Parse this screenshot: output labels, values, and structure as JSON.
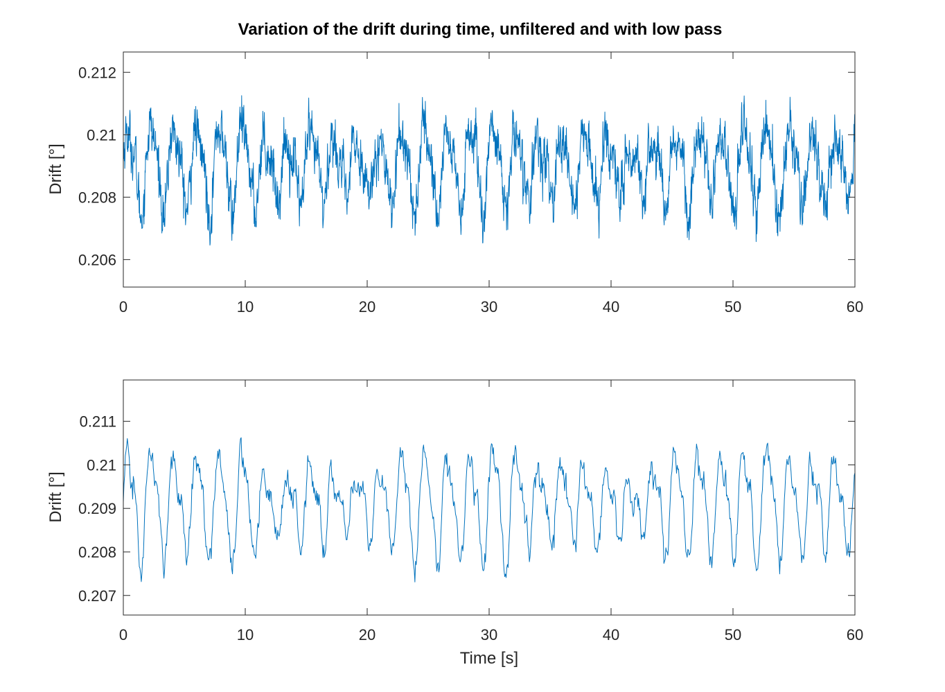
{
  "figure": {
    "title": "Variation of the drift during time, unfiltered and with low pass"
  },
  "chart_data": [
    {
      "type": "line",
      "panel": "top",
      "title": "Variation of the drift during time, unfiltered and with low pass",
      "xlabel": "",
      "ylabel": "Drift [°]",
      "xlim": [
        0,
        60
      ],
      "ylim": [
        0.20512,
        0.21265
      ],
      "xticks": [
        0,
        10,
        20,
        30,
        40,
        50,
        60
      ],
      "xtick_labels": [
        "0",
        "10",
        "20",
        "30",
        "40",
        "50",
        "60"
      ],
      "yticks": [
        0.206,
        0.208,
        0.21,
        0.212
      ],
      "ytick_labels": [
        "0.206",
        "0.208",
        "0.21",
        "0.212"
      ],
      "grid": false,
      "series": [
        {
          "color": "#0072BD",
          "signal": {
            "duration": 60,
            "samples": 3000,
            "mean": 0.209,
            "period": 1.87,
            "amplitude": 0.00105,
            "noise": 0.0011,
            "min": 0.20512,
            "max": 0.21265
          }
        }
      ]
    },
    {
      "type": "line",
      "panel": "bottom",
      "xlabel": "Time [s]",
      "ylabel": "Drift [°]",
      "xlim": [
        0,
        60
      ],
      "ylim": [
        0.20655,
        0.21195
      ],
      "xticks": [
        0,
        10,
        20,
        30,
        40,
        50,
        60
      ],
      "xtick_labels": [
        "0",
        "10",
        "20",
        "30",
        "40",
        "50",
        "60"
      ],
      "yticks": [
        0.207,
        0.208,
        0.209,
        0.21,
        0.211
      ],
      "ytick_labels": [
        "0.207",
        "0.208",
        "0.209",
        "0.21",
        "0.211"
      ],
      "grid": false,
      "series": [
        {
          "color": "#0072BD",
          "signal": {
            "duration": 60,
            "samples": 1100,
            "mean": 0.2091,
            "period": 1.87,
            "amplitude": 0.00095,
            "noise": 0.00045,
            "min": 0.20655,
            "max": 0.21195
          }
        }
      ]
    }
  ]
}
